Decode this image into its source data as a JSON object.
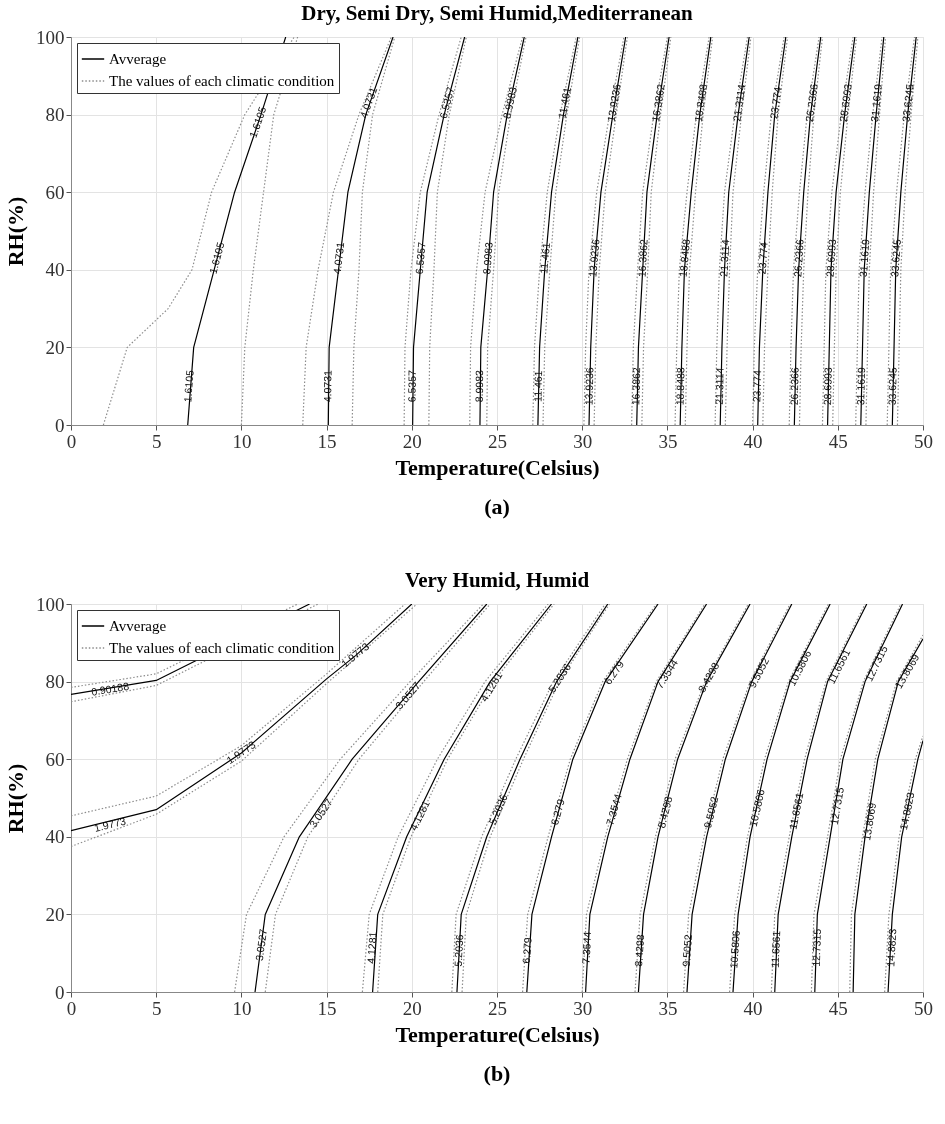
{
  "chart_data": [
    {
      "type": "line",
      "title": "Dry, Semi Dry, Semi Humid,Mediterranean",
      "xlabel": "Temperature(Celsius)",
      "ylabel": "RH(%)",
      "xlim": [
        0,
        50
      ],
      "ylim": [
        0,
        100
      ],
      "xticks": [
        0,
        5,
        10,
        15,
        20,
        25,
        30,
        35,
        40,
        45,
        50
      ],
      "yticks": [
        0,
        20,
        40,
        60,
        80,
        100
      ],
      "grid": true,
      "legend": "top left",
      "series": [
        {
          "name": "Avverage",
          "color": "#000000",
          "line_style": "solid",
          "x": [
            6.85,
            7.2,
            8.4,
            9.6,
            11.15,
            12.6
          ],
          "values": [
            0,
            20,
            40,
            60,
            80,
            100
          ]
        },
        {
          "name": "The values of each climatic condition",
          "color": "#8c8c8c",
          "line_style": "dotted",
          "x": [
            1.9,
            3.3,
            5.7,
            7.1,
            8.25,
            10.2,
            13.1
          ],
          "values": [
            0,
            20,
            30,
            40,
            60,
            80,
            100
          ]
        },
        {
          "color": "#8c8c8c",
          "line_style": "dotted",
          "x": [
            10.0,
            10.2,
            10.7,
            11.3,
            11.9,
            13.3
          ],
          "values": [
            0,
            20,
            40,
            60,
            80,
            100
          ]
        },
        {
          "color": "#000000",
          "line_style": "solid",
          "x": [
            15.1,
            15.15,
            15.7,
            16.25,
            17.3,
            18.9
          ],
          "values": [
            0,
            20,
            40,
            60,
            80,
            100
          ]
        },
        {
          "color": "#8c8c8c",
          "line_style": "dotted",
          "x": [
            13.6,
            13.8,
            14.5,
            15.4,
            16.9,
            18.8
          ],
          "values": [
            0,
            20,
            40,
            60,
            80,
            100
          ]
        },
        {
          "color": "#8c8c8c",
          "line_style": "dotted",
          "x": [
            16.5,
            16.6,
            16.9,
            17.1,
            17.7,
            19.0
          ],
          "values": [
            0,
            20,
            40,
            60,
            80,
            100
          ]
        },
        {
          "color": "#000000",
          "line_style": "solid",
          "x": [
            20.05,
            20.1,
            20.5,
            20.9,
            21.9,
            23.1
          ],
          "values": [
            0,
            20,
            40,
            60,
            80,
            100
          ]
        },
        {
          "color": "#8c8c8c",
          "line_style": "dotted",
          "x": [
            19.55,
            19.6,
            19.95,
            20.5,
            21.6,
            22.9
          ],
          "values": [
            0,
            20,
            40,
            60,
            80,
            100
          ]
        },
        {
          "color": "#8c8c8c",
          "line_style": "dotted",
          "x": [
            21.0,
            21.05,
            21.3,
            21.5,
            22.2,
            23.2
          ],
          "values": [
            0,
            20,
            40,
            60,
            80,
            100
          ]
        },
        {
          "color": "#000000",
          "line_style": "solid",
          "x": [
            24.0,
            24.05,
            24.45,
            24.8,
            25.6,
            26.6
          ],
          "values": [
            0,
            20,
            40,
            60,
            80,
            100
          ]
        },
        {
          "color": "#8c8c8c",
          "line_style": "dotted",
          "x": [
            23.4,
            23.45,
            23.8,
            24.3,
            25.3,
            26.5
          ],
          "values": [
            0,
            20,
            40,
            60,
            80,
            100
          ]
        },
        {
          "color": "#8c8c8c",
          "line_style": "dotted",
          "x": [
            24.4,
            24.45,
            24.8,
            25.1,
            25.8,
            26.7
          ],
          "values": [
            0,
            20,
            40,
            60,
            80,
            100
          ]
        },
        {
          "color": "#000000",
          "line_style": "solid",
          "x": [
            27.4,
            27.5,
            27.8,
            28.2,
            28.9,
            29.75
          ],
          "values": [
            0,
            20,
            40,
            60,
            80,
            100
          ]
        },
        {
          "color": "#8c8c8c",
          "line_style": "dotted",
          "x": [
            27.1,
            27.2,
            27.5,
            27.95,
            28.7,
            29.65
          ],
          "values": [
            0,
            20,
            40,
            60,
            80,
            100
          ]
        },
        {
          "color": "#8c8c8c",
          "line_style": "dotted",
          "x": [
            27.7,
            27.8,
            28.1,
            28.45,
            29.1,
            29.85
          ],
          "values": [
            0,
            20,
            40,
            60,
            80,
            100
          ]
        },
        {
          "color": "#000000",
          "line_style": "solid",
          "x": [
            30.4,
            30.5,
            30.7,
            31.1,
            31.8,
            32.55
          ],
          "values": [
            0,
            20,
            40,
            60,
            80,
            100
          ]
        },
        {
          "color": "#8c8c8c",
          "line_style": "dotted",
          "x": [
            30.1,
            30.2,
            30.4,
            30.85,
            31.6,
            32.45
          ],
          "values": [
            0,
            20,
            40,
            60,
            80,
            100
          ]
        },
        {
          "color": "#8c8c8c",
          "line_style": "dotted",
          "x": [
            30.7,
            30.8,
            31.0,
            31.35,
            32.0,
            32.65
          ],
          "values": [
            0,
            20,
            40,
            60,
            80,
            100
          ]
        },
        {
          "color": "#000000",
          "line_style": "solid",
          "x": [
            33.2,
            33.3,
            33.55,
            33.8,
            34.4,
            35.1
          ],
          "values": [
            0,
            20,
            40,
            60,
            80,
            100
          ]
        },
        {
          "color": "#8c8c8c",
          "line_style": "dotted",
          "x": [
            32.9,
            33.0,
            33.25,
            33.55,
            34.2,
            35.0
          ],
          "values": [
            0,
            20,
            40,
            60,
            80,
            100
          ]
        },
        {
          "color": "#8c8c8c",
          "line_style": "dotted",
          "x": [
            33.5,
            33.6,
            33.85,
            34.05,
            34.6,
            35.2
          ],
          "values": [
            0,
            20,
            40,
            60,
            80,
            100
          ]
        },
        {
          "color": "#000000",
          "line_style": "solid",
          "x": [
            35.75,
            35.85,
            36.0,
            36.4,
            36.9,
            37.55
          ],
          "values": [
            0,
            20,
            40,
            60,
            80,
            100
          ]
        },
        {
          "color": "#8c8c8c",
          "line_style": "dotted",
          "x": [
            35.45,
            35.55,
            35.7,
            36.15,
            36.7,
            37.45
          ],
          "values": [
            0,
            20,
            40,
            60,
            80,
            100
          ]
        },
        {
          "color": "#8c8c8c",
          "line_style": "dotted",
          "x": [
            36.05,
            36.15,
            36.3,
            36.65,
            37.1,
            37.65
          ],
          "values": [
            0,
            20,
            40,
            60,
            80,
            100
          ]
        },
        {
          "color": "#000000",
          "line_style": "solid",
          "x": [
            38.1,
            38.2,
            38.35,
            38.6,
            39.15,
            39.8
          ],
          "values": [
            0,
            20,
            40,
            60,
            80,
            100
          ]
        },
        {
          "color": "#8c8c8c",
          "line_style": "dotted",
          "x": [
            37.8,
            37.9,
            38.05,
            38.35,
            38.95,
            39.7
          ],
          "values": [
            0,
            20,
            40,
            60,
            80,
            100
          ]
        },
        {
          "color": "#8c8c8c",
          "line_style": "dotted",
          "x": [
            38.4,
            38.5,
            38.65,
            38.85,
            39.35,
            39.9
          ],
          "values": [
            0,
            20,
            40,
            60,
            80,
            100
          ]
        },
        {
          "color": "#000000",
          "line_style": "solid",
          "x": [
            40.3,
            40.4,
            40.6,
            40.9,
            41.3,
            41.95
          ],
          "values": [
            0,
            20,
            40,
            60,
            80,
            100
          ]
        },
        {
          "color": "#8c8c8c",
          "line_style": "dotted",
          "x": [
            40.0,
            40.1,
            40.3,
            40.65,
            41.1,
            41.85
          ],
          "values": [
            0,
            20,
            40,
            60,
            80,
            100
          ]
        },
        {
          "color": "#8c8c8c",
          "line_style": "dotted",
          "x": [
            40.6,
            40.7,
            40.9,
            41.15,
            41.5,
            42.05
          ],
          "values": [
            0,
            20,
            40,
            60,
            80,
            100
          ]
        },
        {
          "color": "#000000",
          "line_style": "solid",
          "x": [
            42.45,
            42.55,
            42.7,
            43.0,
            43.4,
            44.0
          ],
          "values": [
            0,
            20,
            40,
            60,
            80,
            100
          ]
        },
        {
          "color": "#8c8c8c",
          "line_style": "dotted",
          "x": [
            42.15,
            42.25,
            42.4,
            42.75,
            43.2,
            43.9
          ],
          "values": [
            0,
            20,
            40,
            60,
            80,
            100
          ]
        },
        {
          "color": "#8c8c8c",
          "line_style": "dotted",
          "x": [
            42.75,
            42.85,
            43.0,
            43.25,
            43.6,
            44.1
          ],
          "values": [
            0,
            20,
            40,
            60,
            80,
            100
          ]
        },
        {
          "color": "#000000",
          "line_style": "solid",
          "x": [
            44.4,
            44.5,
            44.6,
            44.9,
            45.4,
            46.0
          ],
          "values": [
            0,
            20,
            40,
            60,
            80,
            100
          ]
        },
        {
          "color": "#8c8c8c",
          "line_style": "dotted",
          "x": [
            44.1,
            44.2,
            44.3,
            44.65,
            45.2,
            45.9
          ],
          "values": [
            0,
            20,
            40,
            60,
            80,
            100
          ]
        },
        {
          "color": "#8c8c8c",
          "line_style": "dotted",
          "x": [
            44.7,
            44.8,
            44.9,
            45.15,
            45.6,
            46.1
          ],
          "values": [
            0,
            20,
            40,
            60,
            80,
            100
          ]
        },
        {
          "color": "#000000",
          "line_style": "solid",
          "x": [
            46.35,
            46.45,
            46.55,
            46.85,
            47.25,
            47.7
          ],
          "values": [
            0,
            20,
            40,
            60,
            80,
            100
          ]
        },
        {
          "color": "#8c8c8c",
          "line_style": "dotted",
          "x": [
            46.05,
            46.15,
            46.25,
            46.6,
            47.05,
            47.6
          ],
          "values": [
            0,
            20,
            40,
            60,
            80,
            100
          ]
        },
        {
          "color": "#8c8c8c",
          "line_style": "dotted",
          "x": [
            46.65,
            46.75,
            46.85,
            47.1,
            47.45,
            47.8
          ],
          "values": [
            0,
            20,
            40,
            60,
            80,
            100
          ]
        },
        {
          "color": "#000000",
          "line_style": "solid",
          "x": [
            48.2,
            48.3,
            48.4,
            48.7,
            49.1,
            49.6
          ],
          "values": [
            0,
            20,
            40,
            60,
            80,
            100
          ]
        },
        {
          "color": "#8c8c8c",
          "line_style": "dotted",
          "x": [
            47.9,
            48.0,
            48.1,
            48.45,
            48.9,
            49.5
          ],
          "values": [
            0,
            20,
            40,
            60,
            80,
            100
          ]
        },
        {
          "color": "#8c8c8c",
          "line_style": "dotted",
          "x": [
            48.5,
            48.6,
            48.7,
            48.95,
            49.3,
            49.7
          ],
          "values": [
            0,
            20,
            40,
            60,
            80,
            100
          ]
        }
      ],
      "annotations": [
        {
          "text": "1.6105",
          "x": 6.95,
          "y": 10
        },
        {
          "text": "1.6105",
          "x": 8.6,
          "y": 43
        },
        {
          "text": "1.6105",
          "x": 11.0,
          "y": 78
        },
        {
          "text": "4.0731",
          "x": 15.1,
          "y": 10
        },
        {
          "text": "4.0731",
          "x": 15.75,
          "y": 43
        },
        {
          "text": "4.0731",
          "x": 17.5,
          "y": 83
        },
        {
          "text": "6.5357",
          "x": 20.05,
          "y": 10
        },
        {
          "text": "6.5357",
          "x": 20.55,
          "y": 43
        },
        {
          "text": "6.5357",
          "x": 22.1,
          "y": 83
        },
        {
          "text": "8.9983",
          "x": 24.0,
          "y": 10
        },
        {
          "text": "8.9983",
          "x": 24.5,
          "y": 43
        },
        {
          "text": "8.9983",
          "x": 25.8,
          "y": 83
        },
        {
          "text": "11.461",
          "x": 27.45,
          "y": 10
        },
        {
          "text": "11.461",
          "x": 27.85,
          "y": 43
        },
        {
          "text": "11.461",
          "x": 29.0,
          "y": 83
        },
        {
          "text": "13.9236",
          "x": 30.45,
          "y": 10
        },
        {
          "text": "13.9236",
          "x": 30.75,
          "y": 43
        },
        {
          "text": "13.9236",
          "x": 31.9,
          "y": 83
        },
        {
          "text": "16.3862",
          "x": 33.2,
          "y": 10
        },
        {
          "text": "16.3862",
          "x": 33.6,
          "y": 43
        },
        {
          "text": "16.3862",
          "x": 34.5,
          "y": 83
        },
        {
          "text": "18.8488",
          "x": 35.8,
          "y": 10
        },
        {
          "text": "18.8488",
          "x": 36.05,
          "y": 43
        },
        {
          "text": "18.8488",
          "x": 37.0,
          "y": 83
        },
        {
          "text": "21.3114",
          "x": 38.1,
          "y": 10
        },
        {
          "text": "21.3114",
          "x": 38.4,
          "y": 43
        },
        {
          "text": "21.3114",
          "x": 39.25,
          "y": 83
        },
        {
          "text": "23.774",
          "x": 40.3,
          "y": 10
        },
        {
          "text": "23.774",
          "x": 40.65,
          "y": 43
        },
        {
          "text": "23.774",
          "x": 41.4,
          "y": 83
        },
        {
          "text": "26.2366",
          "x": 42.5,
          "y": 10
        },
        {
          "text": "26.2366",
          "x": 42.75,
          "y": 43
        },
        {
          "text": "26.2366",
          "x": 43.5,
          "y": 83
        },
        {
          "text": "28.6993",
          "x": 44.45,
          "y": 10
        },
        {
          "text": "28.6993",
          "x": 44.65,
          "y": 43
        },
        {
          "text": "28.6993",
          "x": 45.5,
          "y": 83
        },
        {
          "text": "31.1619",
          "x": 46.4,
          "y": 10
        },
        {
          "text": "31.1619",
          "x": 46.6,
          "y": 43
        },
        {
          "text": "31.1619",
          "x": 47.3,
          "y": 83
        },
        {
          "text": "33.6245",
          "x": 48.25,
          "y": 10
        },
        {
          "text": "33.6245",
          "x": 48.45,
          "y": 43
        },
        {
          "text": "33.6245",
          "x": 49.15,
          "y": 83
        },
        "(a)"
      ]
    },
    {
      "type": "line",
      "title": "Very Humid, Humid",
      "xlabel": "Temperature(Celsius)",
      "ylabel": "RH(%)",
      "xlim": [
        0,
        50
      ],
      "ylim": [
        0,
        100
      ],
      "xticks": [
        0,
        5,
        10,
        15,
        20,
        25,
        30,
        35,
        40,
        45,
        50
      ],
      "yticks": [
        0,
        20,
        40,
        60,
        80,
        100
      ],
      "grid": true,
      "legend": "top left",
      "series": [
        {
          "name": "Avverage",
          "color": "#000000",
          "line_style": "solid",
          "x": [
            0,
            5,
            10,
            14.0
          ],
          "values": [
            76.7,
            80.3,
            null,
            100
          ]
        },
        {
          "name": "The values of each climatic condition",
          "color": "#8c8c8c",
          "line_style": "dotted",
          "x": [
            0,
            5,
            10,
            13.3
          ],
          "values": [
            78.5,
            82,
            null,
            100
          ]
        },
        {
          "color": "#8c8c8c",
          "line_style": "dotted",
          "x": [
            0,
            5,
            10,
            14.5
          ],
          "values": [
            74.8,
            79,
            null,
            100
          ]
        },
        {
          "color": "#000000",
          "line_style": "solid",
          "x": [
            0,
            5,
            10,
            15,
            16.7,
            20.0
          ],
          "values": [
            41.6,
            47,
            61.6,
            80.7,
            86.7,
            100
          ]
        },
        {
          "color": "#8c8c8c",
          "line_style": "dotted",
          "x": [
            0,
            5,
            10,
            15,
            19.6
          ],
          "values": [
            45.4,
            50.5,
            63.5,
            82,
            100
          ]
        },
        {
          "color": "#8c8c8c",
          "line_style": "dotted",
          "x": [
            0,
            5,
            10,
            15,
            20.3
          ],
          "values": [
            37.5,
            45.8,
            59.5,
            79.5,
            100
          ]
        },
        {
          "color": "#000000",
          "line_style": "solid",
          "x": [
            10.8,
            11.4,
            13.4,
            16.5,
            20.4,
            24.4
          ],
          "values": [
            0,
            20,
            40,
            60,
            80,
            100
          ]
        },
        {
          "color": "#8c8c8c",
          "line_style": "dotted",
          "x": [
            9.6,
            10.3,
            12.5,
            15.8,
            19.9,
            24.2
          ],
          "values": [
            0,
            20,
            40,
            60,
            80,
            100
          ]
        },
        {
          "color": "#8c8c8c",
          "line_style": "dotted",
          "x": [
            11.4,
            12.0,
            13.9,
            16.9,
            20.7,
            24.6
          ],
          "values": [
            0,
            20,
            40,
            60,
            80,
            100
          ]
        },
        {
          "color": "#000000",
          "line_style": "solid",
          "x": [
            17.7,
            18.0,
            19.7,
            21.9,
            24.6,
            28.2
          ],
          "values": [
            0,
            20,
            40,
            60,
            80,
            100
          ]
        },
        {
          "color": "#8c8c8c",
          "line_style": "dotted",
          "x": [
            17.1,
            17.5,
            19.2,
            21.5,
            24.3,
            28.0
          ],
          "values": [
            0,
            20,
            40,
            60,
            80,
            100
          ]
        },
        {
          "color": "#8c8c8c",
          "line_style": "dotted",
          "x": [
            18.0,
            18.3,
            19.95,
            22.1,
            24.8,
            28.35
          ],
          "values": [
            0,
            20,
            40,
            60,
            80,
            100
          ]
        },
        {
          "color": "#000000",
          "line_style": "solid",
          "x": [
            22.65,
            22.9,
            24.4,
            26.35,
            28.5,
            31.5
          ],
          "values": [
            0,
            20,
            40,
            60,
            80,
            100
          ]
        },
        {
          "color": "#8c8c8c",
          "line_style": "dotted",
          "x": [
            22.35,
            22.6,
            24.1,
            26.1,
            28.3,
            31.35
          ],
          "values": [
            0,
            20,
            40,
            60,
            80,
            100
          ]
        },
        {
          "color": "#8c8c8c",
          "line_style": "dotted",
          "x": [
            22.95,
            23.2,
            24.6,
            26.55,
            28.65,
            31.6
          ],
          "values": [
            0,
            20,
            40,
            60,
            80,
            100
          ]
        },
        {
          "color": "#000000",
          "line_style": "solid",
          "x": [
            26.75,
            27.05,
            28.2,
            29.45,
            31.35,
            34.45
          ],
          "values": [
            0,
            20,
            40,
            60,
            80,
            100
          ]
        },
        {
          "color": "#8c8c8c",
          "line_style": "dotted",
          "x": [
            26.5,
            26.8,
            28.0,
            29.3,
            31.2,
            34.35
          ],
          "values": [
            0,
            20,
            40,
            60,
            80,
            100
          ]
        },
        {
          "color": "#000000",
          "line_style": "solid",
          "x": [
            30.2,
            30.45,
            31.5,
            32.8,
            34.45,
            37.3
          ],
          "values": [
            0,
            20,
            40,
            60,
            80,
            100
          ]
        },
        {
          "color": "#8c8c8c",
          "line_style": "dotted",
          "x": [
            30.0,
            30.25,
            31.35,
            32.65,
            34.35,
            37.2
          ],
          "values": [
            0,
            20,
            40,
            60,
            80,
            100
          ]
        },
        {
          "color": "#000000",
          "line_style": "solid",
          "x": [
            33.3,
            33.6,
            34.45,
            35.6,
            37.3,
            39.85
          ],
          "values": [
            0,
            20,
            40,
            60,
            80,
            100
          ]
        },
        {
          "color": "#8c8c8c",
          "line_style": "dotted",
          "x": [
            33.1,
            33.4,
            34.3,
            35.45,
            37.2,
            39.75
          ],
          "values": [
            0,
            20,
            40,
            60,
            80,
            100
          ]
        },
        {
          "color": "#000000",
          "line_style": "solid",
          "x": [
            36.15,
            36.45,
            37.3,
            38.4,
            39.95,
            42.3
          ],
          "values": [
            0,
            20,
            40,
            60,
            80,
            100
          ]
        },
        {
          "color": "#8c8c8c",
          "line_style": "dotted",
          "x": [
            35.95,
            36.25,
            37.15,
            38.25,
            39.85,
            42.2
          ],
          "values": [
            0,
            20,
            40,
            60,
            80,
            100
          ]
        },
        {
          "color": "#000000",
          "line_style": "solid",
          "x": [
            38.85,
            39.15,
            39.85,
            40.85,
            42.2,
            44.55
          ],
          "values": [
            0,
            20,
            40,
            60,
            80,
            100
          ]
        },
        {
          "color": "#8c8c8c",
          "line_style": "dotted",
          "x": [
            38.65,
            38.95,
            39.7,
            40.7,
            42.1,
            44.45
          ],
          "values": [
            0,
            20,
            40,
            60,
            80,
            100
          ]
        },
        {
          "color": "#000000",
          "line_style": "solid",
          "x": [
            41.3,
            41.5,
            42.3,
            43.2,
            44.4,
            46.7
          ],
          "values": [
            0,
            20,
            40,
            60,
            80,
            100
          ]
        },
        {
          "color": "#8c8c8c",
          "line_style": "dotted",
          "x": [
            41.1,
            41.3,
            42.15,
            43.05,
            44.3,
            46.6
          ],
          "values": [
            0,
            20,
            40,
            60,
            80,
            100
          ]
        },
        {
          "color": "#000000",
          "line_style": "solid",
          "x": [
            43.65,
            43.8,
            44.55,
            45.3,
            46.6,
            48.8
          ],
          "values": [
            0,
            20,
            40,
            60,
            80,
            100
          ]
        },
        {
          "color": "#8c8c8c",
          "line_style": "dotted",
          "x": [
            43.45,
            43.6,
            44.4,
            45.15,
            46.5,
            48.7
          ],
          "values": [
            0,
            20,
            40,
            60,
            80,
            100
          ]
        },
        {
          "color": "#000000",
          "line_style": "solid",
          "x": [
            45.9,
            46.0,
            46.6,
            47.35,
            48.55,
            50
          ],
          "values": [
            0,
            20,
            40,
            60,
            80,
            91
          ]
        },
        {
          "color": "#8c8c8c",
          "line_style": "dotted",
          "x": [
            45.7,
            45.8,
            46.45,
            47.2,
            48.45,
            50
          ],
          "values": [
            0,
            20,
            40,
            60,
            80,
            92
          ]
        },
        {
          "color": "#000000",
          "line_style": "solid",
          "x": [
            47.95,
            48.2,
            48.75,
            49.7,
            50
          ],
          "values": [
            0,
            20,
            40,
            60,
            64.8
          ]
        },
        {
          "color": "#8c8c8c",
          "line_style": "dotted",
          "x": [
            47.75,
            48.0,
            48.6,
            49.55,
            50
          ],
          "values": [
            0,
            20,
            40,
            60,
            66
          ]
        }
      ],
      "annotations": [
        {
          "text": "0.90188",
          "x": 2.3,
          "y": 77.9
        },
        {
          "text": "1.9773",
          "x": 2.3,
          "y": 43
        },
        {
          "text": "1.9773",
          "x": 10.0,
          "y": 61.6
        },
        {
          "text": "1.9773",
          "x": 16.7,
          "y": 86.7
        },
        {
          "text": "3.0527",
          "x": 11.2,
          "y": 12.1
        },
        {
          "text": "3.0527",
          "x": 14.7,
          "y": 46
        },
        {
          "text": "3.0527",
          "x": 19.8,
          "y": 76.3
        },
        {
          "text": "4.1281",
          "x": 17.7,
          "y": 11.4
        },
        {
          "text": "4.1281",
          "x": 20.5,
          "y": 45.4
        },
        {
          "text": "4.1281",
          "x": 24.7,
          "y": 78.6
        },
        {
          "text": "5.2036",
          "x": 22.8,
          "y": 10.7
        },
        {
          "text": "5.2036",
          "x": 25.1,
          "y": 47
        },
        {
          "text": "5.2036",
          "x": 28.7,
          "y": 80.8
        },
        {
          "text": "6.279",
          "x": 26.8,
          "y": 10.7
        },
        {
          "text": "6.279",
          "x": 28.6,
          "y": 46.3
        },
        {
          "text": "6.279",
          "x": 31.9,
          "y": 82.2
        },
        {
          "text": "7.3544",
          "x": 30.3,
          "y": 11.4
        },
        {
          "text": "7.3544",
          "x": 31.9,
          "y": 47
        },
        {
          "text": "7.3544",
          "x": 35.0,
          "y": 81.9
        },
        {
          "text": "8.4298",
          "x": 33.4,
          "y": 10.7
        },
        {
          "text": "8.4298",
          "x": 34.9,
          "y": 46.3
        },
        {
          "text": "8.4298",
          "x": 37.45,
          "y": 81
        },
        {
          "text": "9.5052",
          "x": 36.2,
          "y": 10.7
        },
        {
          "text": "9.5052",
          "x": 37.6,
          "y": 46.3
        },
        {
          "text": "9.5052",
          "x": 40.4,
          "y": 82.2
        },
        {
          "text": "10.5806",
          "x": 39.0,
          "y": 11
        },
        {
          "text": "10.5806",
          "x": 40.3,
          "y": 47.4
        },
        {
          "text": "10.5806",
          "x": 42.8,
          "y": 83.4
        },
        {
          "text": "11.6561",
          "x": 41.4,
          "y": 11
        },
        {
          "text": "11.6561",
          "x": 42.6,
          "y": 46.6
        },
        {
          "text": "11.6561",
          "x": 45.1,
          "y": 83.8
        },
        {
          "text": "12.7315",
          "x": 43.8,
          "y": 11.4
        },
        {
          "text": "12.7315",
          "x": 45.0,
          "y": 47.9
        },
        {
          "text": "12.7315",
          "x": 47.3,
          "y": 84.6
        },
        {
          "text": "13.8069",
          "x": 46.9,
          "y": 43.9
        },
        {
          "text": "13.8069",
          "x": 49.1,
          "y": 82.6
        },
        {
          "text": "14.8823",
          "x": 48.2,
          "y": 11.4
        },
        {
          "text": "14.8823",
          "x": 49.1,
          "y": 46.6
        },
        "(b)"
      ]
    }
  ]
}
